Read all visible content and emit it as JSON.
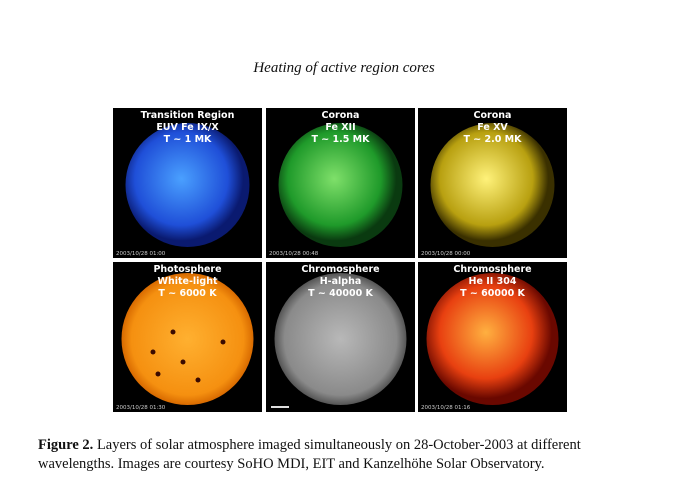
{
  "header": {
    "title": "Heating of active region cores"
  },
  "panels": [
    {
      "label": [
        "Transition Region",
        "EUV Fe IX/X",
        "T ~ 1 MK"
      ],
      "timestamp": "2003/10/28 01:00"
    },
    {
      "label": [
        "Corona",
        "Fe XII",
        "T ~ 1.5 MK"
      ],
      "timestamp": "2003/10/28 00:48"
    },
    {
      "label": [
        "Corona",
        "Fe XV",
        "T ~ 2.0 MK"
      ],
      "timestamp": "2003/10/28 00:00"
    },
    {
      "label": [
        "Photosphere",
        "White-light",
        "T ~ 6000 K"
      ],
      "timestamp": "2003/10/28 01:30"
    },
    {
      "label": [
        "Chromosphere",
        "H-alpha",
        "T ~ 40000 K"
      ]
    },
    {
      "label": [
        "Chromosphere",
        "He II 304",
        "T ~ 60000 K"
      ],
      "timestamp": "2003/10/28 01:16"
    }
  ],
  "caption": {
    "label": "Figure 2.",
    "text": "Layers of solar atmosphere imaged simultaneously on 28-October-2003 at different wavelengths. Images are courtesy SoHO MDI, EIT and Kanzelhöhe Solar Observatory."
  }
}
